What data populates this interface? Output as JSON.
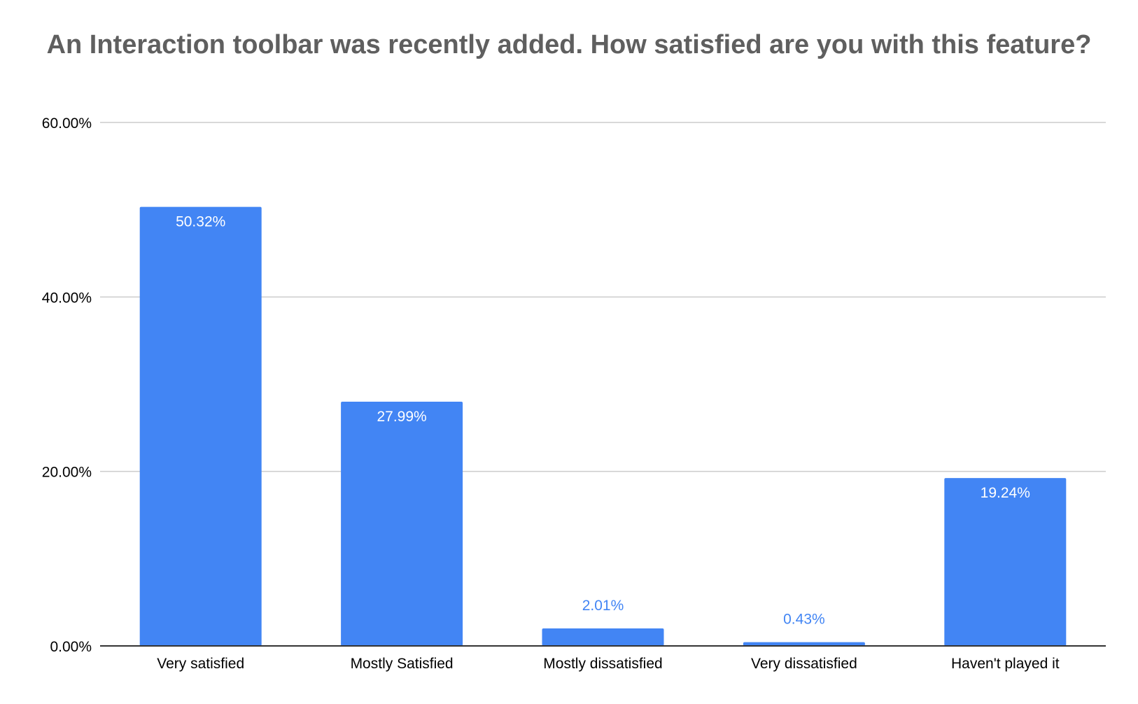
{
  "chart_data": {
    "type": "bar",
    "title": "An Interaction toolbar was recently added. How satisfied are you with this feature?",
    "categories": [
      "Very satisfied",
      "Mostly Satisfied",
      "Mostly dissatisfied",
      "Very dissatisfied",
      "Haven't played it"
    ],
    "values": [
      50.32,
      27.99,
      2.01,
      0.43,
      19.24
    ],
    "value_labels": [
      "50.32%",
      "27.99%",
      "2.01%",
      "0.43%",
      "19.24%"
    ],
    "yticks": [
      0,
      20,
      40,
      60
    ],
    "ytick_labels": [
      "0.00%",
      "20.00%",
      "40.00%",
      "60.00%"
    ],
    "ylim": [
      0,
      60
    ],
    "xlabel": "",
    "ylabel": "",
    "grid": true,
    "legend": "none",
    "colors": {
      "bar": "#4285f4",
      "label_inside": "#ffffff",
      "label_outside": "#4285f4",
      "grid": "#cccccc",
      "axis": "#333333",
      "title": "#5f5f5f"
    }
  }
}
